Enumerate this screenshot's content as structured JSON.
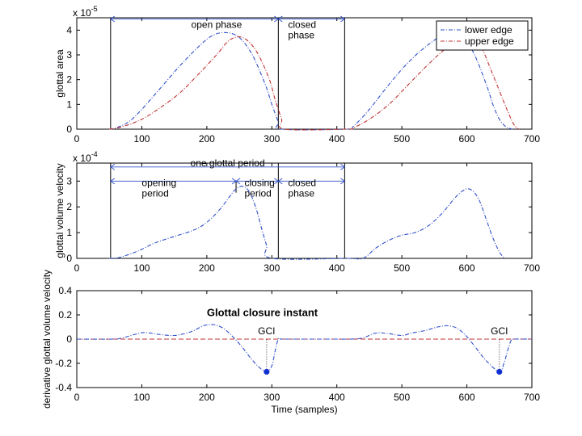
{
  "chart_data": [
    {
      "type": "line",
      "ylabel": "glottal area",
      "exponent_base": "x 10",
      "exponent_power": "-5",
      "xlim": [
        0,
        700
      ],
      "ylim": [
        0,
        4.5
      ],
      "xticks": [
        "0",
        "100",
        "200",
        "300",
        "400",
        "500",
        "600",
        "700"
      ],
      "yticks": [
        "0",
        "1",
        "2",
        "3",
        "4"
      ],
      "legend": {
        "position": "top-right",
        "entries": [
          "lower edge",
          "upper edge"
        ]
      },
      "series": [
        {
          "name": "lower edge",
          "color": "#3050c8",
          "x": [
            50,
            60,
            80,
            100,
            130,
            160,
            190,
            210,
            230,
            250,
            270,
            290,
            300,
            310,
            315,
            415,
            425,
            450,
            480,
            510,
            540,
            570,
            590,
            610,
            630,
            640,
            650,
            660,
            670
          ],
          "y": [
            0,
            0.05,
            0.3,
            0.8,
            1.7,
            2.6,
            3.4,
            3.8,
            3.9,
            3.7,
            3.0,
            1.8,
            1.0,
            0.3,
            0,
            0,
            0.1,
            0.8,
            1.8,
            2.7,
            3.4,
            3.9,
            3.8,
            3.1,
            1.8,
            1.0,
            0.4,
            0.1,
            0
          ]
        },
        {
          "name": "upper edge",
          "color": "#c03030",
          "x": [
            50,
            70,
            100,
            130,
            160,
            190,
            215,
            235,
            255,
            275,
            295,
            305,
            315,
            320,
            415,
            425,
            450,
            480,
            510,
            540,
            570,
            600,
            620,
            640,
            660,
            670,
            675,
            680
          ],
          "y": [
            0,
            0.1,
            0.4,
            0.9,
            1.5,
            2.3,
            3.0,
            3.6,
            3.7,
            3.2,
            2.1,
            1.2,
            0.4,
            0,
            0,
            0.05,
            0.4,
            1.0,
            1.8,
            2.6,
            3.3,
            3.7,
            3.4,
            2.2,
            0.9,
            0.3,
            0.1,
            0
          ]
        }
      ],
      "markers": [
        {
          "type": "vline",
          "x": 52
        },
        {
          "type": "vline",
          "x": 310
        },
        {
          "type": "vline",
          "x": 412
        }
      ],
      "spans": [
        {
          "x1": 52,
          "x2": 310,
          "y": 4.45,
          "label": "open phase",
          "label_x": 215,
          "label_y": 4.1,
          "anchor": "middle"
        },
        {
          "x1": 310,
          "x2": 412,
          "y": 4.45,
          "label": "closed phase",
          "label_x": 325,
          "label_y": 4.1,
          "anchor": "start",
          "two_lines": true
        }
      ]
    },
    {
      "type": "line",
      "ylabel": "glottal volume velocity",
      "exponent_base": "x 10",
      "exponent_power": "-4",
      "xlim": [
        0,
        700
      ],
      "ylim": [
        0,
        3.7
      ],
      "xticks": [
        "0",
        "100",
        "200",
        "300",
        "400",
        "500",
        "600",
        "700"
      ],
      "yticks": [
        "0",
        "1",
        "2",
        "3"
      ],
      "series": [
        {
          "color": "#3050c8",
          "x": [
            50,
            60,
            80,
            100,
            120,
            150,
            180,
            200,
            220,
            235,
            245,
            255,
            265,
            275,
            285,
            292,
            300,
            415,
            440,
            460,
            480,
            500,
            520,
            540,
            560,
            580,
            590,
            600,
            610,
            620,
            630,
            640,
            650,
            658
          ],
          "y": [
            0,
            0,
            0.15,
            0.35,
            0.6,
            0.85,
            1.1,
            1.4,
            1.9,
            2.4,
            2.7,
            2.8,
            2.6,
            2.0,
            1.1,
            0.5,
            0,
            0,
            0,
            0.4,
            0.7,
            0.9,
            1.0,
            1.25,
            1.7,
            2.3,
            2.55,
            2.7,
            2.6,
            2.2,
            1.5,
            0.8,
            0.25,
            0
          ]
        }
      ],
      "markers": [
        {
          "type": "vline",
          "x": 52
        },
        {
          "type": "vline",
          "x": 310
        },
        {
          "type": "vline",
          "x": 412
        },
        {
          "type": "vline",
          "x": 245,
          "y1": 2.55,
          "y2": 3.0
        }
      ],
      "spans": [
        {
          "x1": 52,
          "x2": 412,
          "y": 3.55,
          "label": "one glottal period",
          "label_x": 232,
          "label_y": 3.58,
          "anchor": "middle"
        },
        {
          "x1": 52,
          "x2": 245,
          "y": 3.0,
          "label": "opening period",
          "label_x": 100,
          "label_y": 2.8,
          "anchor": "start",
          "two_lines": true
        },
        {
          "x1": 245,
          "x2": 310,
          "y": 3.0,
          "label": "closing period",
          "label_x": 258,
          "label_y": 2.8,
          "anchor": "start",
          "two_lines": true
        },
        {
          "x1": 310,
          "x2": 412,
          "y": 3.0,
          "label": "closed phase",
          "label_x": 325,
          "label_y": 2.8,
          "anchor": "start",
          "two_lines": true
        }
      ]
    },
    {
      "type": "line",
      "ylabel": "derivative glottal volume velocity",
      "xlabel": "Time (samples)",
      "xlim": [
        0,
        700
      ],
      "ylim": [
        -0.4,
        0.4
      ],
      "xticks": [
        "0",
        "100",
        "200",
        "300",
        "400",
        "500",
        "600",
        "700"
      ],
      "yticks": [
        "0.4",
        "0.2",
        "0",
        "-0.2",
        "-0.4"
      ],
      "zero_line": {
        "y": 0,
        "color": "#c03030"
      },
      "annotation": {
        "text": "Glottal closure instant",
        "color": "#cc1111",
        "x": 200,
        "y": 0.19
      },
      "gci_label": "GCI",
      "gci": [
        {
          "x": 292,
          "y": -0.27
        },
        {
          "x": 650,
          "y": -0.27
        }
      ],
      "series": [
        {
          "color": "#3050c8",
          "x": [
            0,
            55,
            70,
            90,
            105,
            125,
            150,
            175,
            195,
            210,
            225,
            240,
            255,
            268,
            280,
            292,
            300,
            305,
            310,
            315,
            320,
            400,
            420,
            440,
            460,
            480,
            500,
            515,
            535,
            555,
            570,
            585,
            600,
            615,
            630,
            650,
            657,
            663,
            668,
            672,
            700
          ],
          "y": [
            0,
            0,
            0.01,
            0.04,
            0.055,
            0.04,
            0.03,
            0.06,
            0.11,
            0.12,
            0.09,
            0.02,
            -0.07,
            -0.16,
            -0.23,
            -0.27,
            -0.22,
            -0.1,
            0,
            0,
            0,
            0,
            0,
            0.01,
            0.05,
            0.045,
            0.03,
            0.05,
            0.07,
            0.1,
            0.11,
            0.09,
            0.02,
            -0.08,
            -0.18,
            -0.27,
            -0.2,
            -0.09,
            -0.01,
            0,
            0
          ]
        }
      ]
    }
  ]
}
